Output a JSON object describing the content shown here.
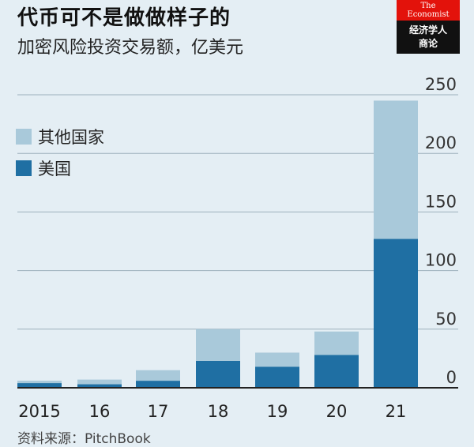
{
  "header": {
    "title": "代币可不是做做样子的",
    "subtitle": "加密风险投资交易额，亿美元"
  },
  "logo": {
    "line1": "The",
    "line2": "Economist",
    "cn_line1": "经济学人",
    "cn_line2": "商论"
  },
  "source": "资料来源：PitchBook",
  "colors": {
    "background": "#e4eef4",
    "other_countries": "#a9c9da",
    "usa": "#1f6fa3",
    "logo_red": "#e3120b"
  },
  "chart_data": {
    "type": "bar",
    "stacked": true,
    "categories": [
      "2015",
      "16",
      "17",
      "18",
      "19",
      "20",
      "21"
    ],
    "series": [
      {
        "name": "美国",
        "color": "#1f6fa3",
        "values": [
          4,
          3,
          6,
          23,
          18,
          28,
          127
        ]
      },
      {
        "name": "其他国家",
        "color": "#a9c9da",
        "values": [
          2,
          4,
          9,
          27,
          12,
          20,
          118
        ]
      }
    ],
    "ylim": [
      0,
      250
    ],
    "yticks": [
      0,
      50,
      100,
      150,
      200,
      250
    ],
    "ytick_labels": [
      "0",
      "50",
      "100",
      "150",
      "200",
      "250"
    ],
    "grid": true,
    "legend_position": "top-left",
    "y_axis_side": "right",
    "xlabel": "",
    "ylabel": ""
  }
}
